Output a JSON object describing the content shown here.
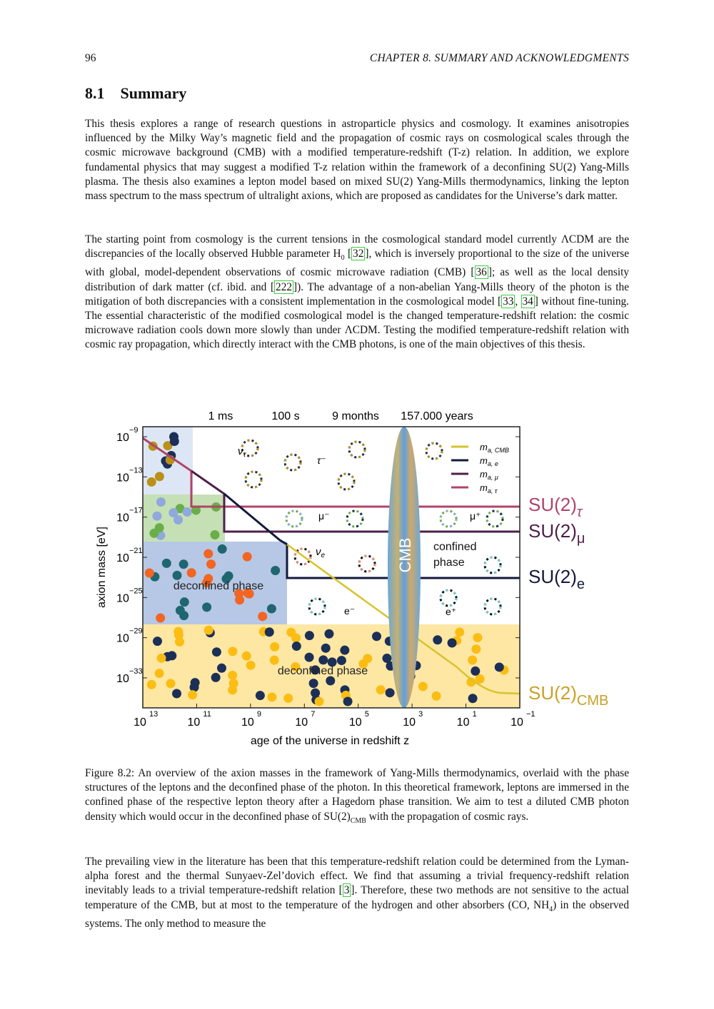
{
  "header": {
    "page_number": "96",
    "chapter": "CHAPTER 8.   SUMMARY AND ACKNOWLEDGMENTS"
  },
  "section": {
    "number": "8.1",
    "title": "Summary"
  },
  "paragraphs": {
    "p1": "This thesis explores a range of research questions in astroparticle physics and cosmology. It examines anisotropies influenced by the Milky Way’s magnetic field and the propagation of cosmic rays on cosmological scales through the cosmic microwave background (CMB) with a modified temperature-redshift (T-z) relation. In addition, we explore fundamental physics that may suggest a modified T-z relation within the framework of a deconfining SU(2) Yang-Mills plasma. The thesis also examines a lepton model based on mixed SU(2) Yang-Mills thermodynamics, linking the lepton mass spectrum to the mass spectrum of ultralight axions, which are proposed as candidates for the Universe’s dark matter.",
    "p2a": "The starting point from cosmology is the current tensions in the cosmological standard model currently ΛCDM are the discrepancies of the locally observed Hubble parameter H",
    "p2_h0_sub": "0",
    "p2_cite1": "32",
    "p2b": ", which is inversely proportional to the size of the universe with global, model-dependent observations of cosmic microwave radiation (CMB) ",
    "p2_cite2": "36",
    "p2c": "; as well as the local density distribution of dark matter (cf. ibid. and ",
    "p2_cite3": "222",
    "p2d": "). The advantage of a non-abelian Yang-Mills theory of the photon is the mitigation of both discrepancies with a consistent implementation in the cosmological model ",
    "p2_cite4": "33",
    "p2_cite5": "34",
    "p2e": " without fine-tuning. The essential characteristic of the modified cosmological model is the changed temperature-redshift relation: the cosmic microwave radiation cools down more slowly than under ΛCDM. Testing the modified temperature-redshift relation with cosmic ray propagation, which directly interact with the CMB photons, is one of the main objectives of this thesis.",
    "p3a": "The prevailing view in the literature has been that this temperature-redshift relation could be determined from the Lyman-alpha forest and the thermal Sunyaev-Zel’dovich effect. We find that assuming a trivial frequency-redshift relation inevitably leads to a trivial temperature-redshift relation ",
    "p3_cite": "3",
    "p3b": ". Therefore, these two methods are not sensitive to the actual temperature of the CMB, but at most to the temperature of the hydrogen and other absorbers (CO, NH",
    "p3_sub": "4",
    "p3c": ") in the observed systems. The only method to measure the"
  },
  "caption": {
    "a": "Figure 8.2:  An overview of the axion masses in the framework of Yang-Mills thermodynamics, overlaid with the phase structures of the leptons and the deconfined phase of the photon. In this theoretical framework, leptons are immersed in the confined phase of the respective lepton theory after a Hagedorn phase transition. We aim to test a diluted CMB photon density which would occur in the deconfined phase of SU(2)",
    "sub": "CMB",
    "b": " with the propagation of cosmic rays."
  },
  "chart_data": {
    "type": "line",
    "xlabel": "age of the universe in redshift z",
    "ylabel": "axion mass [eV]",
    "x_scale": "log",
    "y_scale": "log",
    "x_reversed": true,
    "xlim": [
      10000000000000.0,
      0.1
    ],
    "ylim": [
      1e-08,
      1e-36
    ],
    "x_ticks": [
      "13",
      "11",
      "9",
      "7",
      "5",
      "3",
      "1",
      "-1"
    ],
    "y_ticks": [
      "-9",
      "-13",
      "-17",
      "-21",
      "-25",
      "-29",
      "-33"
    ],
    "top_axis_labels": [
      "1 ms",
      "100 s",
      "9 months",
      "157.000 years"
    ],
    "legend": {
      "placement": "top-right",
      "entries": [
        {
          "label": "m",
          "sub": "a, CMB",
          "color": "#d9c22a"
        },
        {
          "label": "m",
          "sub": "a, e",
          "color": "#141a3c"
        },
        {
          "label": "m",
          "sub": "a, μ",
          "color": "#4e1f4a"
        },
        {
          "label": "m",
          "sub": "a, τ",
          "color": "#b04469"
        }
      ]
    },
    "phase_labels": {
      "SU2_tau": "SU(2)",
      "tau_sub": "τ",
      "SU2_mu": "SU(2)",
      "mu_sub": "μ",
      "SU2_e": "SU(2)",
      "e_sub": "e",
      "SU2_cmb": "SU(2)",
      "cmb_sub": "CMB"
    },
    "region_labels": {
      "deconfined_upper": "deconfined phase",
      "deconfined_lower": "deconfined phase",
      "confined": "confined",
      "confined2": "phase",
      "cmb": "CMB"
    },
    "particle_labels": {
      "nu_tau": "ν",
      "nu_tau_sub": "τ",
      "tau": "τ⁻",
      "mu_minus": "μ⁻",
      "mu_plus": "μ⁺",
      "nu_e": "ν",
      "nu_e_sub": "e",
      "e_minus": "e⁻",
      "e_plus": "e⁺"
    },
    "colors": {
      "su2_tau": "#b04469",
      "su2_mu": "#4e1f4a",
      "su2_e": "#141a3c",
      "su2_cmb": "#c9a227",
      "deconfined_yellow": "#fde7a3",
      "deconfined_blue": "#b6c8e6",
      "green_region": "#c5e0b4",
      "lightblue_region": "#dde6f4"
    }
  }
}
